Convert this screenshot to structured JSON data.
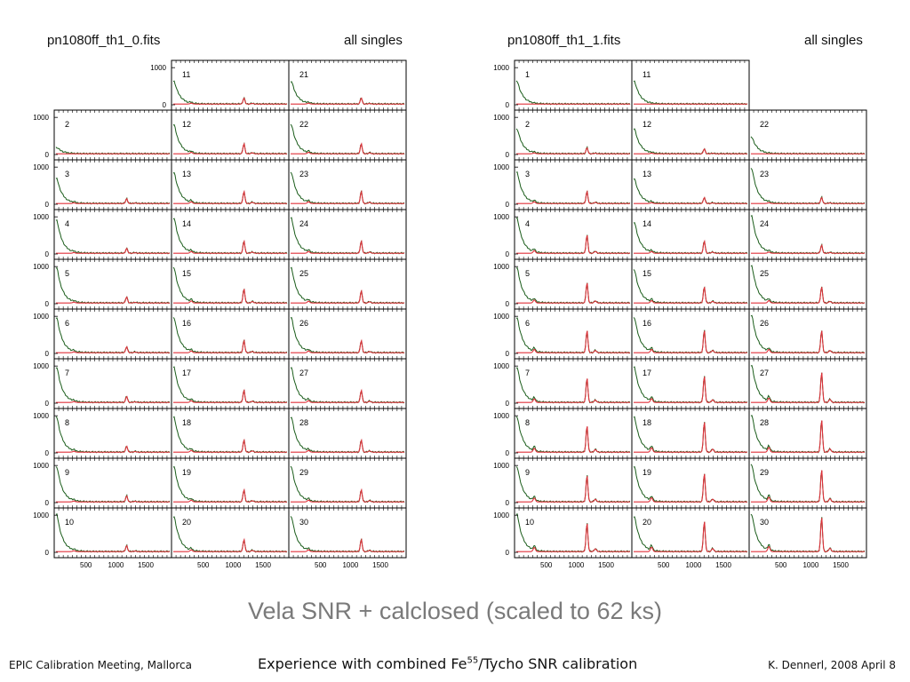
{
  "slide": {
    "caption": "Vela SNR + calclosed (scaled to 62 ks)",
    "footer": {
      "left": "EPIC Calibration Meeting, Mallorca",
      "center_prefix": "Experience with combined Fe",
      "center_superscript": "55",
      "center_suffix": "/Tycho SNR calibration",
      "right": "K. Dennerl, 2008 April 8"
    }
  },
  "colors": {
    "histogram": "#1a5c1a",
    "fit": "#e0303a",
    "axes": "#000000",
    "background": "#ffffff",
    "caption": "#7a7a7a"
  },
  "chart_data": [
    {
      "type": "line",
      "file": "pn1080ff_th1_0.fits",
      "label": "all singles",
      "xticks": [
        500,
        1000,
        1500
      ],
      "yticks": [
        0,
        1000
      ],
      "xlim": [
        0,
        1900
      ],
      "ylim": [
        0,
        1100
      ],
      "channels": [
        {
          "id": 11,
          "row": 0,
          "col": 1,
          "peak_5_9": 0.15,
          "peak_cu": 0.0,
          "low_end": 0.55
        },
        {
          "id": 21,
          "row": 0,
          "col": 2,
          "peak_5_9": 0.15,
          "peak_cu": 0.0,
          "low_end": 0.55
        },
        {
          "id": 2,
          "row": 1,
          "col": 0,
          "peak_5_9": 0.0,
          "peak_cu": 0.0,
          "low_end": 0.15
        },
        {
          "id": 12,
          "row": 1,
          "col": 1,
          "peak_5_9": 0.25,
          "peak_cu": 0.0,
          "low_end": 0.7
        },
        {
          "id": 22,
          "row": 1,
          "col": 2,
          "peak_5_9": 0.25,
          "peak_cu": 0.0,
          "low_end": 0.7
        },
        {
          "id": 3,
          "row": 2,
          "col": 0,
          "peak_5_9": 0.12,
          "peak_cu": 0.0,
          "low_end": 0.6
        },
        {
          "id": 13,
          "row": 2,
          "col": 1,
          "peak_5_9": 0.3,
          "peak_cu": 0.0,
          "low_end": 0.75
        },
        {
          "id": 23,
          "row": 2,
          "col": 2,
          "peak_5_9": 0.3,
          "peak_cu": 0.0,
          "low_end": 0.75
        },
        {
          "id": 4,
          "row": 3,
          "col": 0,
          "peak_5_9": 0.12,
          "peak_cu": 0.0,
          "low_end": 0.8
        },
        {
          "id": 14,
          "row": 3,
          "col": 1,
          "peak_5_9": 0.3,
          "peak_cu": 0.0,
          "low_end": 0.85
        },
        {
          "id": 24,
          "row": 3,
          "col": 2,
          "peak_5_9": 0.3,
          "peak_cu": 0.0,
          "low_end": 0.85
        },
        {
          "id": 5,
          "row": 4,
          "col": 0,
          "peak_5_9": 0.15,
          "peak_cu": 0.0,
          "low_end": 0.85
        },
        {
          "id": 15,
          "row": 4,
          "col": 1,
          "peak_5_9": 0.35,
          "peak_cu": 0.0,
          "low_end": 0.85
        },
        {
          "id": 25,
          "row": 4,
          "col": 2,
          "peak_5_9": 0.3,
          "peak_cu": 0.0,
          "low_end": 0.85
        },
        {
          "id": 6,
          "row": 5,
          "col": 0,
          "peak_5_9": 0.15,
          "peak_cu": 0.0,
          "low_end": 0.85
        },
        {
          "id": 16,
          "row": 5,
          "col": 1,
          "peak_5_9": 0.3,
          "peak_cu": 0.0,
          "low_end": 0.85
        },
        {
          "id": 26,
          "row": 5,
          "col": 2,
          "peak_5_9": 0.3,
          "peak_cu": 0.0,
          "low_end": 0.85
        },
        {
          "id": 7,
          "row": 6,
          "col": 0,
          "peak_5_9": 0.15,
          "peak_cu": 0.0,
          "low_end": 0.85
        },
        {
          "id": 17,
          "row": 6,
          "col": 1,
          "peak_5_9": 0.3,
          "peak_cu": 0.0,
          "low_end": 0.85
        },
        {
          "id": 27,
          "row": 6,
          "col": 2,
          "peak_5_9": 0.3,
          "peak_cu": 0.0,
          "low_end": 0.85
        },
        {
          "id": 8,
          "row": 7,
          "col": 0,
          "peak_5_9": 0.15,
          "peak_cu": 0.0,
          "low_end": 0.85
        },
        {
          "id": 18,
          "row": 7,
          "col": 1,
          "peak_5_9": 0.3,
          "peak_cu": 0.0,
          "low_end": 0.85
        },
        {
          "id": 28,
          "row": 7,
          "col": 2,
          "peak_5_9": 0.3,
          "peak_cu": 0.0,
          "low_end": 0.85
        },
        {
          "id": 9,
          "row": 8,
          "col": 0,
          "peak_5_9": 0.15,
          "peak_cu": 0.0,
          "low_end": 0.85
        },
        {
          "id": 19,
          "row": 8,
          "col": 1,
          "peak_5_9": 0.3,
          "peak_cu": 0.0,
          "low_end": 0.85
        },
        {
          "id": 29,
          "row": 8,
          "col": 2,
          "peak_5_9": 0.3,
          "peak_cu": 0.0,
          "low_end": 0.85
        },
        {
          "id": 10,
          "row": 9,
          "col": 0,
          "peak_5_9": 0.15,
          "peak_cu": 0.0,
          "low_end": 0.9
        },
        {
          "id": 20,
          "row": 9,
          "col": 1,
          "peak_5_9": 0.3,
          "peak_cu": 0.0,
          "low_end": 0.85
        },
        {
          "id": 30,
          "row": 9,
          "col": 2,
          "peak_5_9": 0.3,
          "peak_cu": 0.0,
          "low_end": 0.85
        }
      ]
    },
    {
      "type": "line",
      "file": "pn1080ff_th1_1.fits",
      "label": "all singles",
      "xticks": [
        500,
        1000,
        1500
      ],
      "yticks": [
        0,
        1000
      ],
      "xlim": [
        0,
        1900
      ],
      "ylim": [
        0,
        1100
      ],
      "channels": [
        {
          "id": 1,
          "row": 0,
          "col": 0,
          "peak_5_9": 0.0,
          "peak_cu": 0.0,
          "low_end": 0.55
        },
        {
          "id": 11,
          "row": 0,
          "col": 1,
          "peak_5_9": 0.0,
          "peak_cu": 0.0,
          "low_end": 0.55
        },
        {
          "id": 2,
          "row": 1,
          "col": 0,
          "peak_5_9": 0.15,
          "peak_cu": 0.0,
          "low_end": 0.6
        },
        {
          "id": 12,
          "row": 1,
          "col": 1,
          "peak_5_9": 0.12,
          "peak_cu": 0.0,
          "low_end": 0.6
        },
        {
          "id": 22,
          "row": 1,
          "col": 2,
          "peak_5_9": 0.0,
          "peak_cu": 0.0,
          "low_end": 0.4
        },
        {
          "id": 3,
          "row": 2,
          "col": 0,
          "peak_5_9": 0.3,
          "peak_cu": 0.0,
          "low_end": 0.75
        },
        {
          "id": 13,
          "row": 2,
          "col": 1,
          "peak_5_9": 0.15,
          "peak_cu": 0.0,
          "low_end": 0.6
        },
        {
          "id": 23,
          "row": 2,
          "col": 2,
          "peak_5_9": 0.15,
          "peak_cu": 0.0,
          "low_end": 0.85
        },
        {
          "id": 4,
          "row": 3,
          "col": 0,
          "peak_5_9": 0.45,
          "peak_cu": 0.0,
          "low_end": 0.85
        },
        {
          "id": 14,
          "row": 3,
          "col": 1,
          "peak_5_9": 0.3,
          "peak_cu": 0.0,
          "low_end": 0.75
        },
        {
          "id": 24,
          "row": 3,
          "col": 2,
          "peak_5_9": 0.2,
          "peak_cu": 0.0,
          "low_end": 0.9
        },
        {
          "id": 5,
          "row": 4,
          "col": 0,
          "peak_5_9": 0.5,
          "peak_cu": 0.0,
          "low_end": 0.85
        },
        {
          "id": 15,
          "row": 4,
          "col": 1,
          "peak_5_9": 0.4,
          "peak_cu": 0.0,
          "low_end": 0.8
        },
        {
          "id": 25,
          "row": 4,
          "col": 2,
          "peak_5_9": 0.4,
          "peak_cu": 0.0,
          "low_end": 0.9
        },
        {
          "id": 6,
          "row": 5,
          "col": 0,
          "peak_5_9": 0.55,
          "peak_cu": 0.0,
          "low_end": 0.85
        },
        {
          "id": 16,
          "row": 5,
          "col": 1,
          "peak_5_9": 0.55,
          "peak_cu": 0.0,
          "low_end": 0.85
        },
        {
          "id": 26,
          "row": 5,
          "col": 2,
          "peak_5_9": 0.55,
          "peak_cu": 0.0,
          "low_end": 0.9
        },
        {
          "id": 7,
          "row": 6,
          "col": 0,
          "peak_5_9": 0.6,
          "peak_cu": 0.0,
          "low_end": 0.85
        },
        {
          "id": 17,
          "row": 6,
          "col": 1,
          "peak_5_9": 0.65,
          "peak_cu": 0.0,
          "low_end": 0.85
        },
        {
          "id": 27,
          "row": 6,
          "col": 2,
          "peak_5_9": 0.75,
          "peak_cu": 0.0,
          "low_end": 0.9
        },
        {
          "id": 8,
          "row": 7,
          "col": 0,
          "peak_5_9": 0.65,
          "peak_cu": 0.0,
          "low_end": 0.85
        },
        {
          "id": 18,
          "row": 7,
          "col": 1,
          "peak_5_9": 0.75,
          "peak_cu": 0.0,
          "low_end": 0.85
        },
        {
          "id": 28,
          "row": 7,
          "col": 2,
          "peak_5_9": 0.8,
          "peak_cu": 0.0,
          "low_end": 0.9
        },
        {
          "id": 9,
          "row": 8,
          "col": 0,
          "peak_5_9": 0.65,
          "peak_cu": 0.0,
          "low_end": 0.85
        },
        {
          "id": 19,
          "row": 8,
          "col": 1,
          "peak_5_9": 0.7,
          "peak_cu": 0.0,
          "low_end": 0.85
        },
        {
          "id": 29,
          "row": 8,
          "col": 2,
          "peak_5_9": 0.8,
          "peak_cu": 0.0,
          "low_end": 0.9
        },
        {
          "id": 10,
          "row": 9,
          "col": 0,
          "peak_5_9": 0.7,
          "peak_cu": 0.0,
          "low_end": 0.9
        },
        {
          "id": 20,
          "row": 9,
          "col": 1,
          "peak_5_9": 0.75,
          "peak_cu": 0.0,
          "low_end": 0.85
        },
        {
          "id": 30,
          "row": 9,
          "col": 2,
          "peak_5_9": 0.85,
          "peak_cu": 0.0,
          "low_end": 0.9
        }
      ]
    }
  ]
}
